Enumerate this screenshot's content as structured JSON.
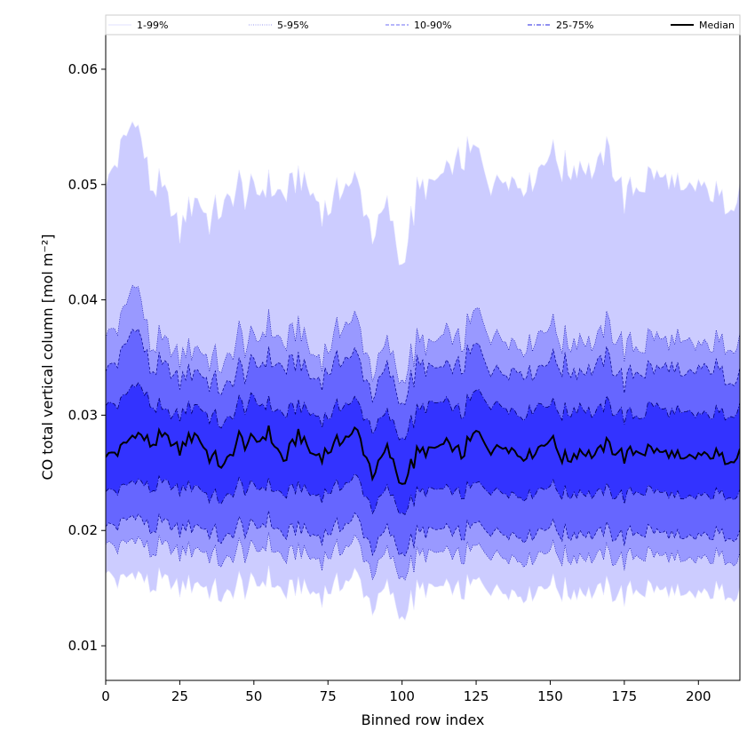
{
  "chart_data": {
    "type": "area",
    "title": "",
    "xlabel": "Binned row index",
    "ylabel": "CO total vertical column [mol m⁻²]",
    "xlim": [
      0,
      214
    ],
    "ylim": [
      0.007,
      0.063
    ],
    "xticks": [
      0,
      25,
      50,
      75,
      100,
      125,
      150,
      175,
      200
    ],
    "yticks": [
      0.01,
      0.02,
      0.03,
      0.04,
      0.05,
      0.06
    ],
    "xtick_labels": [
      "0",
      "25",
      "50",
      "75",
      "100",
      "125",
      "150",
      "175",
      "200"
    ],
    "ytick_labels": [
      "0.01",
      "0.02",
      "0.03",
      "0.04",
      "0.05",
      "0.06"
    ],
    "n_points": 215,
    "legend": {
      "placement": "top",
      "entries": [
        {
          "label": "1-99%",
          "color": "#e0e0ff",
          "style": "solid"
        },
        {
          "label": "5-95%",
          "color": "#9a9aef",
          "style": "dotted"
        },
        {
          "label": "10-90%",
          "color": "#6e6ef5",
          "style": "dashed"
        },
        {
          "label": "25-75%",
          "color": "#2020e0",
          "style": "dashdot"
        },
        {
          "label": "Median",
          "color": "#000000",
          "style": "solid"
        }
      ]
    },
    "band_fill_colors": [
      "#ccccff",
      "#9999ff",
      "#6666ff",
      "#3333ff"
    ],
    "series_anchors": {
      "description": "Approximate values sampled every 5 bins (index 0..210) plus final index 214",
      "x": [
        0,
        5,
        10,
        15,
        20,
        25,
        30,
        35,
        40,
        45,
        50,
        55,
        60,
        65,
        70,
        75,
        80,
        85,
        90,
        95,
        100,
        105,
        110,
        115,
        120,
        125,
        130,
        135,
        140,
        145,
        150,
        155,
        160,
        165,
        170,
        175,
        180,
        185,
        190,
        195,
        200,
        205,
        210,
        214
      ],
      "p99": [
        0.05,
        0.053,
        0.056,
        0.05,
        0.049,
        0.046,
        0.049,
        0.047,
        0.048,
        0.05,
        0.049,
        0.05,
        0.049,
        0.051,
        0.049,
        0.048,
        0.05,
        0.05,
        0.046,
        0.048,
        0.043,
        0.049,
        0.05,
        0.051,
        0.052,
        0.053,
        0.05,
        0.051,
        0.05,
        0.051,
        0.053,
        0.051,
        0.052,
        0.051,
        0.053,
        0.049,
        0.05,
        0.051,
        0.05,
        0.049,
        0.05,
        0.049,
        0.048,
        0.05
      ],
      "p95": [
        0.037,
        0.038,
        0.042,
        0.036,
        0.036,
        0.035,
        0.036,
        0.035,
        0.034,
        0.037,
        0.036,
        0.038,
        0.036,
        0.038,
        0.035,
        0.036,
        0.038,
        0.038,
        0.034,
        0.036,
        0.033,
        0.036,
        0.036,
        0.037,
        0.036,
        0.039,
        0.037,
        0.037,
        0.036,
        0.037,
        0.038,
        0.036,
        0.037,
        0.036,
        0.038,
        0.036,
        0.036,
        0.037,
        0.036,
        0.036,
        0.036,
        0.036,
        0.036,
        0.037
      ],
      "p90": [
        0.034,
        0.035,
        0.038,
        0.034,
        0.034,
        0.033,
        0.034,
        0.033,
        0.032,
        0.034,
        0.034,
        0.035,
        0.034,
        0.035,
        0.033,
        0.034,
        0.035,
        0.035,
        0.032,
        0.034,
        0.031,
        0.034,
        0.034,
        0.034,
        0.034,
        0.036,
        0.034,
        0.034,
        0.034,
        0.034,
        0.035,
        0.034,
        0.034,
        0.034,
        0.035,
        0.033,
        0.034,
        0.034,
        0.034,
        0.033,
        0.034,
        0.034,
        0.033,
        0.034
      ],
      "p75": [
        0.031,
        0.031,
        0.033,
        0.031,
        0.03,
        0.03,
        0.031,
        0.03,
        0.029,
        0.031,
        0.031,
        0.031,
        0.03,
        0.031,
        0.03,
        0.03,
        0.031,
        0.031,
        0.029,
        0.03,
        0.028,
        0.03,
        0.031,
        0.031,
        0.03,
        0.032,
        0.031,
        0.031,
        0.03,
        0.031,
        0.031,
        0.03,
        0.031,
        0.03,
        0.031,
        0.03,
        0.03,
        0.031,
        0.03,
        0.03,
        0.03,
        0.03,
        0.03,
        0.031
      ],
      "median": [
        0.0265,
        0.027,
        0.0285,
        0.0275,
        0.028,
        0.027,
        0.0285,
        0.0265,
        0.0255,
        0.028,
        0.0275,
        0.0285,
        0.026,
        0.0285,
        0.0265,
        0.027,
        0.028,
        0.0285,
        0.025,
        0.027,
        0.024,
        0.0265,
        0.027,
        0.0275,
        0.0265,
        0.0285,
        0.027,
        0.0275,
        0.0265,
        0.027,
        0.028,
        0.026,
        0.027,
        0.0265,
        0.0275,
        0.0265,
        0.027,
        0.027,
        0.0265,
        0.026,
        0.0265,
        0.0265,
        0.026,
        0.027
      ],
      "p25": [
        0.0235,
        0.0235,
        0.0245,
        0.0235,
        0.024,
        0.0235,
        0.024,
        0.023,
        0.0225,
        0.024,
        0.0235,
        0.024,
        0.023,
        0.024,
        0.023,
        0.0235,
        0.024,
        0.0245,
        0.022,
        0.0235,
        0.0215,
        0.023,
        0.0235,
        0.0235,
        0.023,
        0.024,
        0.0235,
        0.0235,
        0.023,
        0.0235,
        0.024,
        0.023,
        0.0235,
        0.023,
        0.0235,
        0.023,
        0.0235,
        0.0235,
        0.023,
        0.0225,
        0.023,
        0.023,
        0.023,
        0.0235
      ],
      "p10": [
        0.0205,
        0.0205,
        0.0215,
        0.02,
        0.0205,
        0.02,
        0.0205,
        0.02,
        0.019,
        0.0205,
        0.02,
        0.021,
        0.0195,
        0.0205,
        0.0195,
        0.02,
        0.0205,
        0.021,
        0.0185,
        0.02,
        0.018,
        0.0195,
        0.02,
        0.02,
        0.0195,
        0.0205,
        0.02,
        0.02,
        0.0195,
        0.02,
        0.0205,
        0.0195,
        0.02,
        0.0195,
        0.02,
        0.0195,
        0.02,
        0.02,
        0.0195,
        0.019,
        0.0195,
        0.0195,
        0.0195,
        0.02
      ],
      "p5": [
        0.019,
        0.0185,
        0.0195,
        0.018,
        0.0185,
        0.018,
        0.0185,
        0.018,
        0.017,
        0.0185,
        0.018,
        0.019,
        0.0175,
        0.0185,
        0.0175,
        0.018,
        0.0185,
        0.019,
        0.0165,
        0.018,
        0.016,
        0.0175,
        0.018,
        0.018,
        0.0175,
        0.0185,
        0.018,
        0.018,
        0.0175,
        0.018,
        0.0185,
        0.0175,
        0.018,
        0.0175,
        0.018,
        0.0175,
        0.018,
        0.018,
        0.0175,
        0.017,
        0.0175,
        0.0175,
        0.0175,
        0.018
      ],
      "p1": [
        0.0165,
        0.0155,
        0.0165,
        0.015,
        0.0155,
        0.015,
        0.0155,
        0.015,
        0.014,
        0.0155,
        0.015,
        0.016,
        0.0145,
        0.0155,
        0.0145,
        0.015,
        0.0155,
        0.016,
        0.0135,
        0.015,
        0.0125,
        0.0145,
        0.015,
        0.015,
        0.0145,
        0.0155,
        0.015,
        0.015,
        0.0145,
        0.015,
        0.0155,
        0.0145,
        0.015,
        0.0145,
        0.015,
        0.0145,
        0.015,
        0.015,
        0.0145,
        0.014,
        0.0145,
        0.0145,
        0.0145,
        0.015
      ]
    }
  }
}
